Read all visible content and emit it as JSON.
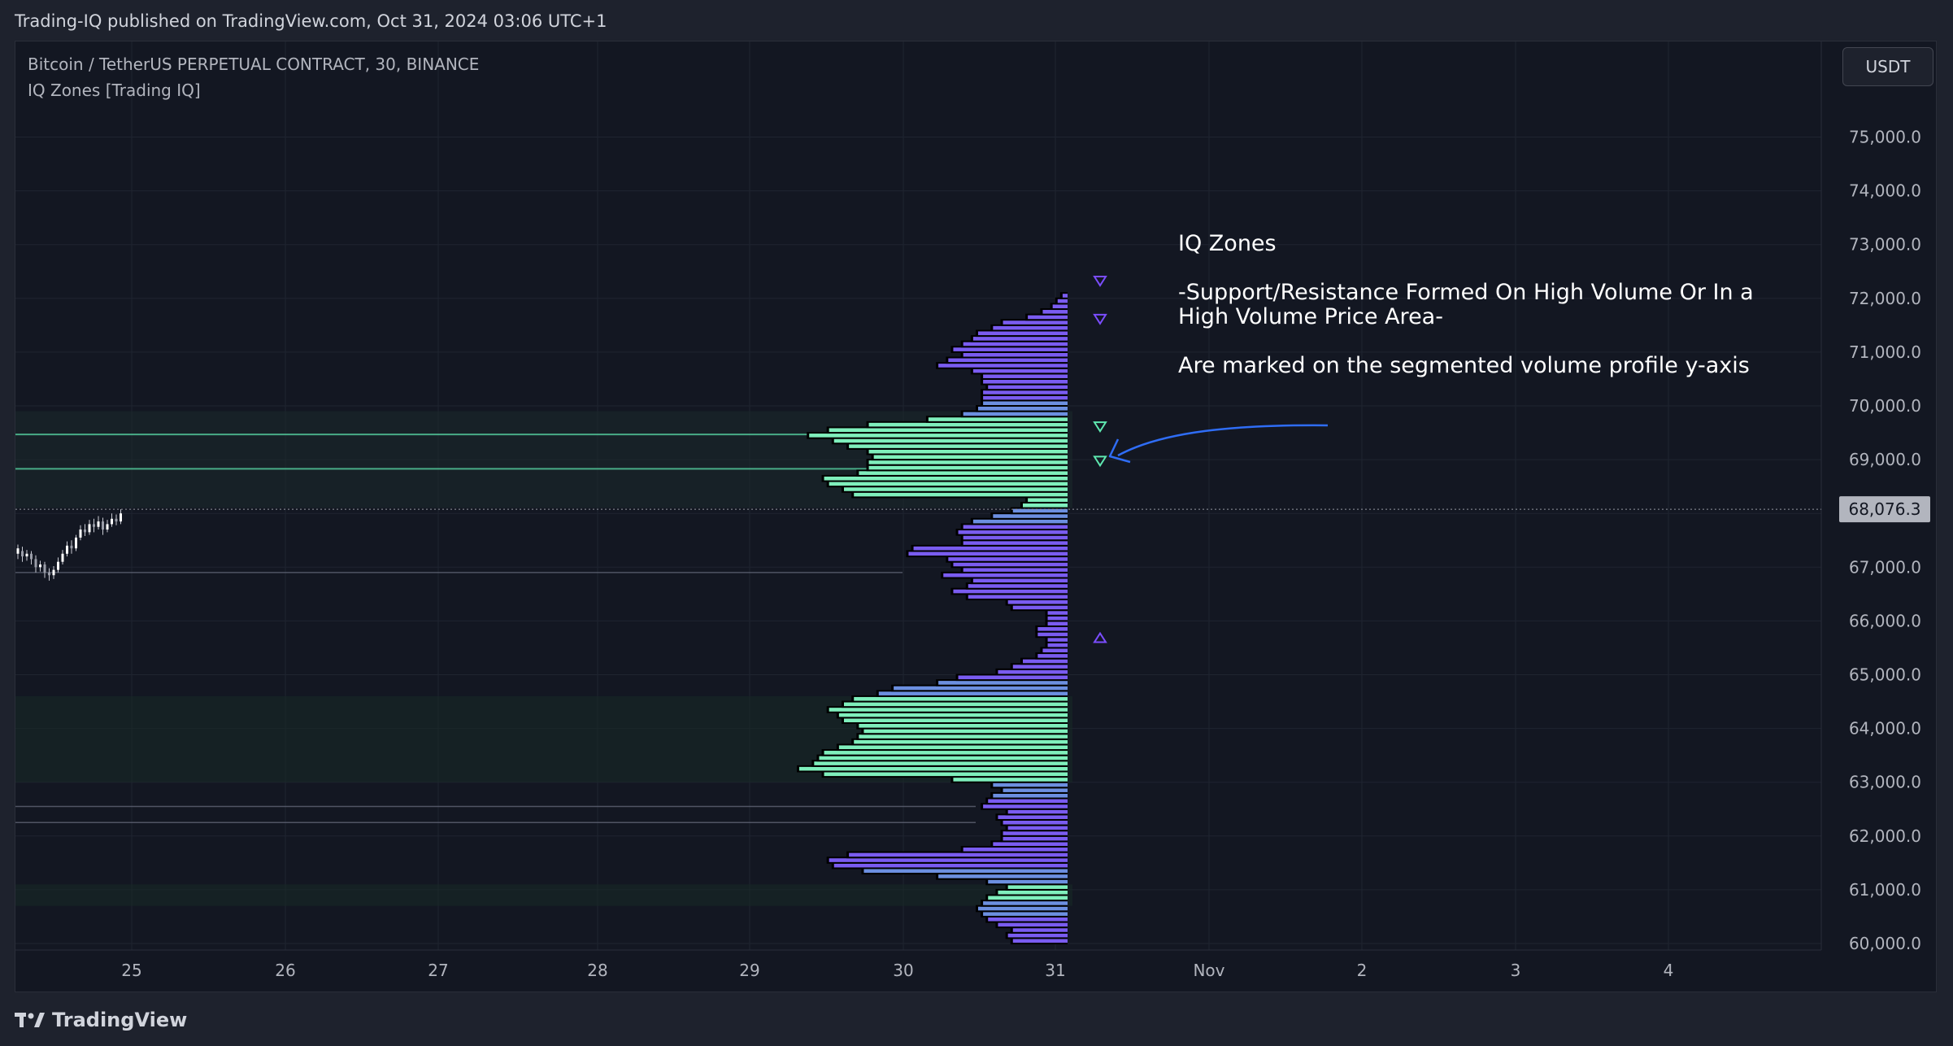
{
  "header": {
    "published": "Trading-IQ published on TradingView.com, Oct 31, 2024 03:06 UTC+1"
  },
  "chart": {
    "symbol": "Bitcoin / TetherUS PERPETUAL CONTRACT, 30, BINANCE",
    "indicator": "IQ Zones [Trading IQ]",
    "currency_button": "USDT"
  },
  "annotation": {
    "title": "IQ Zones",
    "line1": "-Support/Resistance Formed On High Volume Or In a High Volume Price Area-",
    "line2": "Are marked on the segmented volume profile y-axis"
  },
  "footer": {
    "brand": "TradingView"
  },
  "colors": {
    "background": "#131722",
    "grid": "#1f2430",
    "purple_zone": "#7b4dff",
    "green_zone": "#5ee8b0",
    "profile_purple": "#7a5cf0",
    "profile_blue": "#6c8fe0",
    "profile_green": "#7fefbc",
    "arrow": "#2f6df6",
    "price_box": "#b2b5be"
  },
  "chart_data": {
    "type": "bar",
    "orientation": "horizontal-volume-profile",
    "y_axis": {
      "ticks": [
        "60,000.0",
        "61,000.0",
        "62,000.0",
        "63,000.0",
        "64,000.0",
        "65,000.0",
        "66,000.0",
        "67,000.0",
        "68,000.0",
        "69,000.0",
        "70,000.0",
        "71,000.0",
        "72,000.0",
        "73,000.0",
        "74,000.0",
        "75,000.0"
      ],
      "tick_values": [
        60000,
        61000,
        62000,
        63000,
        64000,
        65000,
        66000,
        67000,
        68000,
        69000,
        70000,
        71000,
        72000,
        73000,
        74000,
        75000
      ],
      "range": [
        59950,
        75800
      ]
    },
    "x_axis": {
      "ticks": [
        "25",
        "26",
        "27",
        "28",
        "29",
        "30",
        "31",
        "Nov",
        "2",
        "3",
        "4"
      ]
    },
    "current_price": {
      "value": 68076.3,
      "label": "68,076.3"
    },
    "zones": [
      {
        "price": 72330,
        "color": "purple",
        "marker": "down"
      },
      {
        "price": 71620,
        "color": "purple",
        "marker": "down"
      },
      {
        "price": 69620,
        "color": "green",
        "marker": "down"
      },
      {
        "price": 68980,
        "color": "green",
        "marker": "down"
      },
      {
        "price": 65680,
        "color": "purple",
        "marker": "up"
      }
    ],
    "profile_bins": {
      "bottom_price": 60000,
      "step": 100,
      "volumes": [
        11,
        12,
        11,
        14,
        16,
        17,
        18,
        17,
        16,
        14,
        12,
        16,
        26,
        41,
        47,
        48,
        44,
        21,
        15,
        13,
        13,
        12,
        13,
        14,
        12,
        17,
        16,
        15,
        13,
        15,
        23,
        49,
        54,
        51,
        50,
        49,
        46,
        43,
        42,
        41,
        42,
        45,
        46,
        48,
        45,
        43,
        38,
        35,
        26,
        22,
        14,
        11,
        9,
        6,
        5,
        4,
        4,
        6,
        6,
        4,
        4,
        4,
        11,
        12,
        20,
        23,
        20,
        19,
        25,
        21,
        23,
        24,
        32,
        31,
        21,
        21,
        22,
        21,
        19,
        15,
        11,
        9,
        8,
        43,
        45,
        48,
        49,
        42,
        40,
        40,
        39,
        40,
        44,
        47,
        52,
        48,
        40,
        28,
        21,
        18,
        17,
        17,
        17,
        16,
        17,
        17,
        19,
        26,
        24,
        21,
        23,
        21,
        19,
        18,
        15,
        13,
        8,
        5,
        3,
        2,
        1
      ]
    }
  }
}
